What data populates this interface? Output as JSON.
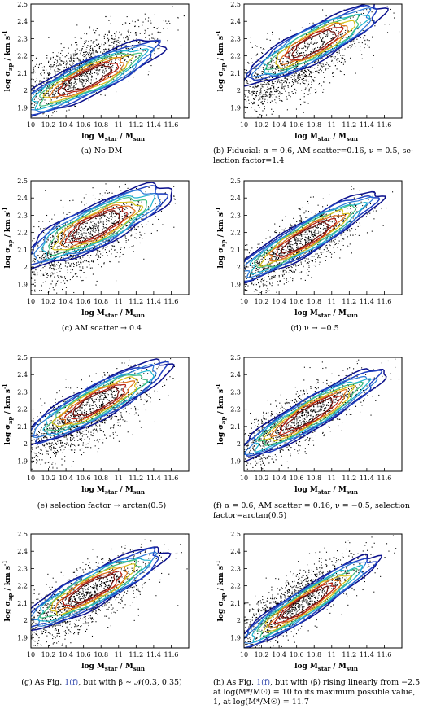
{
  "chart_data": [
    {
      "type": "scatter",
      "panel": "a",
      "xlabel": "log M_star / M_sun",
      "ylabel": "log σ_ap / km s^-1",
      "xlim": [
        10,
        11.8
      ],
      "ylim": [
        1.84,
        2.5
      ],
      "x_ticks": [
        "10",
        "10.2",
        "10.4",
        "10.6",
        "10.8",
        "11",
        "11.2",
        "11.4",
        "11.6"
      ],
      "y_ticks": [
        "1.9",
        "2",
        "2.1",
        "2.2",
        "2.3",
        "2.4",
        "2.5"
      ],
      "scatter_trend": {
        "x": [
          10.0,
          11.7
        ],
        "y": [
          2.0,
          2.38
        ]
      },
      "scatter_spread": 0.08,
      "contour_center": [
        10.65,
        2.07
      ],
      "contour_slope": 0.24,
      "contour_extent": [
        0.9,
        0.1
      ],
      "caption": "(a) No-DM"
    },
    {
      "type": "scatter",
      "panel": "b",
      "xlabel": "log M_star / M_sun",
      "ylabel": "log σ_ap / km s^-1",
      "xlim": [
        10,
        11.8
      ],
      "ylim": [
        1.84,
        2.5
      ],
      "x_ticks": [
        "10",
        "10.2",
        "10.4",
        "10.6",
        "10.8",
        "11",
        "11.2",
        "11.4",
        "11.6"
      ],
      "y_ticks": [
        "1.9",
        "2",
        "2.1",
        "2.2",
        "2.3",
        "2.4",
        "2.5"
      ],
      "scatter_trend": {
        "x": [
          10.0,
          11.7
        ],
        "y": [
          2.0,
          2.42
        ]
      },
      "scatter_spread": 0.09,
      "contour_center": [
        10.8,
        2.27
      ],
      "contour_slope": 0.27,
      "contour_extent": [
        0.85,
        0.1
      ],
      "caption": "(b) Fiducial: α = 0.6, AM scatter=0.16, ν = 0.5, selection factor=1.4"
    },
    {
      "type": "scatter",
      "panel": "c",
      "xlabel": "log M_star / M_sun",
      "ylabel": "log σ_ap / km s^-1",
      "xlim": [
        10,
        11.8
      ],
      "ylim": [
        1.84,
        2.5
      ],
      "x_ticks": [
        "10",
        "10.2",
        "10.4",
        "10.6",
        "10.8",
        "11",
        "11.2",
        "11.4",
        "11.6"
      ],
      "y_ticks": [
        "1.9",
        "2",
        "2.1",
        "2.2",
        "2.3",
        "2.4",
        "2.5"
      ],
      "scatter_trend": {
        "x": [
          10.0,
          11.7
        ],
        "y": [
          2.02,
          2.42
        ]
      },
      "scatter_spread": 0.1,
      "contour_center": [
        10.75,
        2.24
      ],
      "contour_slope": 0.25,
      "contour_extent": [
        0.9,
        0.12
      ],
      "caption": "(c) AM scatter → 0.4"
    },
    {
      "type": "scatter",
      "panel": "d",
      "xlabel": "log M_star / M_sun",
      "ylabel": "log σ_ap / km s^-1",
      "xlim": [
        10,
        11.8
      ],
      "ylim": [
        1.84,
        2.5
      ],
      "x_ticks": [
        "10",
        "10.2",
        "10.4",
        "10.6",
        "10.8",
        "11",
        "11.2",
        "11.4",
        "11.6"
      ],
      "y_ticks": [
        "1.9",
        "2",
        "2.1",
        "2.2",
        "2.3",
        "2.4",
        "2.5"
      ],
      "scatter_trend": {
        "x": [
          10.0,
          11.7
        ],
        "y": [
          1.95,
          2.42
        ]
      },
      "scatter_spread": 0.08,
      "contour_center": [
        10.7,
        2.17
      ],
      "contour_slope": 0.3,
      "contour_extent": [
        0.95,
        0.09
      ],
      "caption": "(d) ν → −0.5"
    },
    {
      "type": "scatter",
      "panel": "e",
      "xlabel": "log M_star / M_sun",
      "ylabel": "log σ_ap / km s^-1",
      "xlim": [
        10,
        11.8
      ],
      "ylim": [
        1.84,
        2.5
      ],
      "x_ticks": [
        "10",
        "10.2",
        "10.4",
        "10.6",
        "10.8",
        "11",
        "11.2",
        "11.4",
        "11.6"
      ],
      "y_ticks": [
        "1.9",
        "2",
        "2.1",
        "2.2",
        "2.3",
        "2.4",
        "2.5"
      ],
      "scatter_trend": {
        "x": [
          10.0,
          11.7
        ],
        "y": [
          2.0,
          2.43
        ]
      },
      "scatter_spread": 0.09,
      "contour_center": [
        10.75,
        2.24
      ],
      "contour_slope": 0.27,
      "contour_extent": [
        0.9,
        0.1
      ],
      "caption": "(e) selection factor → arctan(0.5)"
    },
    {
      "type": "scatter",
      "panel": "f",
      "xlabel": "log M_star / M_sun",
      "ylabel": "log σ_ap / km s^-1",
      "xlim": [
        10,
        11.8
      ],
      "ylim": [
        1.84,
        2.5
      ],
      "x_ticks": [
        "10",
        "10.2",
        "10.4",
        "10.6",
        "10.8",
        "11",
        "11.2",
        "11.4",
        "11.6"
      ],
      "y_ticks": [
        "1.9",
        "2",
        "2.1",
        "2.2",
        "2.3",
        "2.4",
        "2.5"
      ],
      "scatter_trend": {
        "x": [
          10.0,
          11.7
        ],
        "y": [
          1.97,
          2.43
        ]
      },
      "scatter_spread": 0.08,
      "contour_center": [
        10.75,
        2.17
      ],
      "contour_slope": 0.3,
      "contour_extent": [
        0.95,
        0.09
      ],
      "caption": "(f) α = 0.6, AM scatter = 0.16, ν = −0.5, selection factor=arctan(0.5)"
    },
    {
      "type": "scatter",
      "panel": "g",
      "xlabel": "log M_star / M_sun",
      "ylabel": "log σ_ap / km s^-1",
      "xlim": [
        10,
        11.8
      ],
      "ylim": [
        1.84,
        2.5
      ],
      "x_ticks": [
        "10",
        "10.2",
        "10.4",
        "10.6",
        "10.8",
        "11",
        "11.2",
        "11.4",
        "11.6"
      ],
      "y_ticks": [
        "1.9",
        "2",
        "2.1",
        "2.2",
        "2.3",
        "2.4",
        "2.5"
      ],
      "scatter_trend": {
        "x": [
          10.0,
          11.7
        ],
        "y": [
          1.97,
          2.4
        ]
      },
      "scatter_spread": 0.09,
      "contour_center": [
        10.7,
        2.18
      ],
      "contour_slope": 0.27,
      "contour_extent": [
        0.9,
        0.1
      ],
      "caption": "(g) As Fig. 1(f), but with β ∼ 𝒩(0.3, 0.35)"
    },
    {
      "type": "scatter",
      "panel": "h",
      "xlabel": "log M_star / M_sun",
      "ylabel": "log σ_ap / km s^-1",
      "xlim": [
        10,
        11.8
      ],
      "ylim": [
        1.84,
        2.5
      ],
      "x_ticks": [
        "10",
        "10.2",
        "10.4",
        "10.6",
        "10.8",
        "11",
        "11.2",
        "11.4",
        "11.6"
      ],
      "y_ticks": [
        "1.9",
        "2",
        "2.1",
        "2.2",
        "2.3",
        "2.4",
        "2.5"
      ],
      "scatter_trend": {
        "x": [
          10.0,
          11.7
        ],
        "y": [
          1.93,
          2.45
        ]
      },
      "scatter_spread": 0.08,
      "contour_center": [
        10.7,
        2.1
      ],
      "contour_slope": 0.33,
      "contour_extent": [
        0.95,
        0.08
      ],
      "caption": "(h) As Fig. 1(f), but with ⟨β⟩ rising linearly from −2.5 at log(M*/M☉) = 10 to its maximum possible value, 1, at log(M*/M☉) = 11.7"
    }
  ],
  "captions": {
    "a": "(a) No-DM",
    "b_line1": "(b) Fiducial: α = 0.6, AM scatter=0.16, ν = 0.5, se-",
    "b_line2": "lection factor=1.4",
    "c": "(c) AM scatter → 0.4",
    "d": "(d) ν → −0.5",
    "e": "(e) selection factor → arctan(0.5)",
    "f_line1": "(f)  α = 0.6, AM scatter = 0.16, ν = −0.5, selection",
    "f_line2": "factor=arctan(0.5)",
    "g_prefix": "(g) As Fig. ",
    "g_link": "1(f)",
    "g_suffix": ", but with β ∼ 𝒩(0.3, 0.35)",
    "h_line1_prefix": "(h) As Fig. ",
    "h_link": "1(f)",
    "h_line1_suffix": ", but with ⟨β⟩ rising linearly from −2.5",
    "h_line2": "at log(M*/M☉) = 10 to its maximum possible value,",
    "h_line3": "1, at log(M*/M☉) = 11.7"
  },
  "axis_text": {
    "xlabel_main": "log M",
    "xlabel_sub1": "star",
    "xlabel_mid": " / M",
    "xlabel_sub2": "sun",
    "ylabel_main": "log σ",
    "ylabel_sub": "ap",
    "ylabel_rest": " / km s",
    "ylabel_sup": "-1"
  },
  "contour_colors": [
    "#0a0f8c",
    "#1f3fbf",
    "#2a78d6",
    "#1fb5d0",
    "#3fbf7f",
    "#d8c21a",
    "#e0701a",
    "#b81e12",
    "#6e0f0a"
  ]
}
